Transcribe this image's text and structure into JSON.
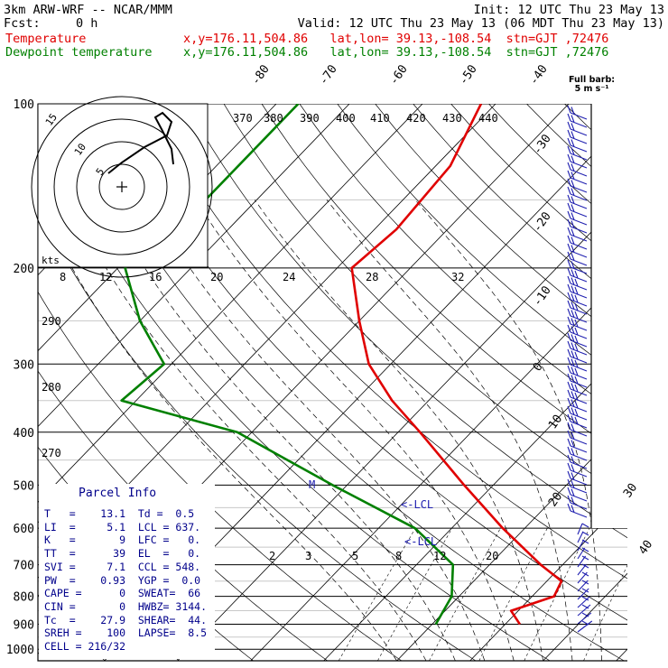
{
  "header": {
    "model": "3km ARW-WRF -- NCAR/MMM",
    "init": "Init: 12 UTC Thu 23 May 13",
    "fcst_label": "Fcst:",
    "fcst_value": "0 h",
    "valid": "Valid: 12 UTC Thu 23 May 13 (06 MDT Thu 23 May 13)",
    "temp_label": "Temperature",
    "temp_info": "x,y=176.11,504.86   lat,lon= 39.13,-108.54  stn=GJT ,72476",
    "dew_label": "Dewpoint temperature",
    "dew_info": "x,y=176.11,504.86   lat,lon= 39.13,-108.54  stn=GJT ,72476",
    "full_barb_1": "Full barb:",
    "full_barb_2": "5 m s⁻¹"
  },
  "colors": {
    "temperature": "#e00000",
    "dewpoint": "#008000",
    "barbs": "#2020b0",
    "parcel": "#00008b"
  },
  "chart_data": {
    "type": "line",
    "title": "",
    "pressure_levels": [
      "100",
      "200",
      "300",
      "400",
      "500",
      "600",
      "700",
      "800",
      "900",
      "1000"
    ],
    "isotherm_labels": [
      "-80",
      "-70",
      "-60",
      "-50",
      "-40",
      "-30",
      "-20",
      "-10",
      "0",
      "10",
      "20",
      "30",
      "40"
    ],
    "theta_labels": [
      "370",
      "380",
      "390",
      "400",
      "410",
      "420",
      "430",
      "440"
    ],
    "theta_left_labels": [
      "290",
      "280",
      "270"
    ],
    "mixing_ratio_labels": [
      "2",
      "3",
      "5",
      "8",
      "12",
      "20"
    ],
    "hodograph": {
      "units_label": "kts",
      "ring_labels": [
        "5",
        "10",
        "15"
      ],
      "speed_labels": [
        "8",
        "12",
        "16",
        "20",
        "24",
        "28",
        "32"
      ]
    },
    "annotations": {
      "lcl_1": "<-LCL",
      "lcl_2": "<-LCL",
      "m_mark": "M"
    },
    "series": [
      {
        "name": "Temperature",
        "points": [
          [
            100,
            -62
          ],
          [
            130,
            -58
          ],
          [
            170,
            -57
          ],
          [
            200,
            -58
          ],
          [
            250,
            -50
          ],
          [
            300,
            -43
          ],
          [
            350,
            -35
          ],
          [
            400,
            -27
          ],
          [
            500,
            -14
          ],
          [
            600,
            -3
          ],
          [
            700,
            7
          ],
          [
            750,
            12
          ],
          [
            800,
            13
          ],
          [
            850,
            9
          ],
          [
            900,
            12
          ]
        ]
      },
      {
        "name": "Dewpoint temperature",
        "points": [
          [
            100,
            -87
          ],
          [
            150,
            -87
          ],
          [
            200,
            -89
          ],
          [
            250,
            -80
          ],
          [
            300,
            -71
          ],
          [
            350,
            -72
          ],
          [
            400,
            -52
          ],
          [
            500,
            -32
          ],
          [
            600,
            -15
          ],
          [
            700,
            -5
          ],
          [
            800,
            -1
          ],
          [
            900,
            0.5
          ]
        ]
      }
    ]
  },
  "parcel_info": {
    "title": "Parcel Info",
    "rows": [
      [
        "T   =    13.1  Td =  0.5"
      ],
      [
        "LI  =     5.1  LCL = 637."
      ],
      [
        "K   =       9  LFC =   0."
      ],
      [
        "TT  =      39  EL  =   0."
      ],
      [
        "SVI =     7.1  CCL = 548."
      ],
      [
        "PW  =    0.93  YGP =  0.0"
      ],
      [
        "CAPE =      0  SWEAT=  66"
      ],
      [
        "CIN =       0  HWBZ= 3144."
      ],
      [
        "Tc  =    27.9  SHEAR=  44."
      ],
      [
        "SREH =    100  LAPSE=  8.5"
      ],
      [
        "CELL = 216/32"
      ]
    ]
  }
}
